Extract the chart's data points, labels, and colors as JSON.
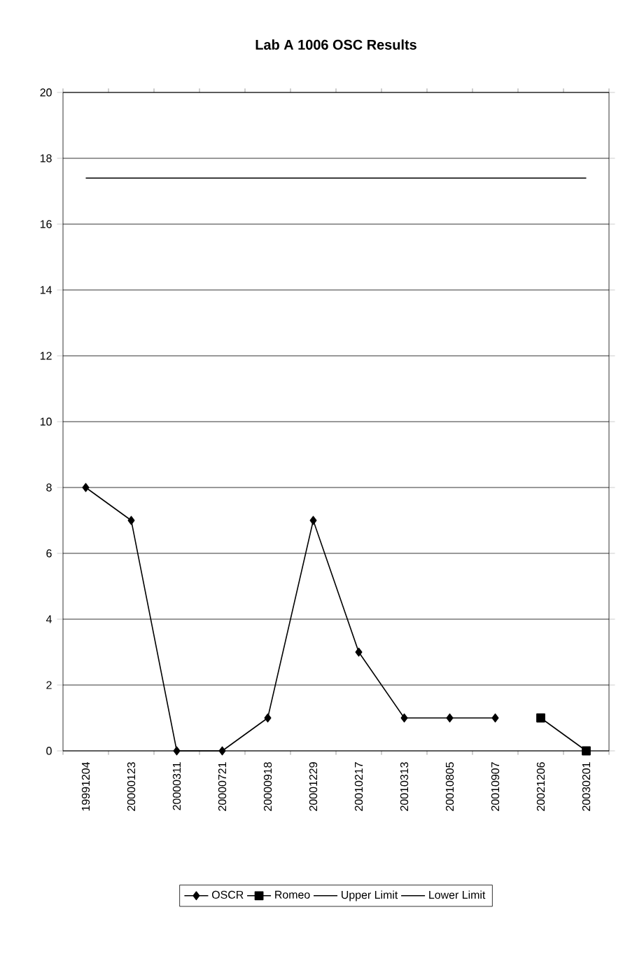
{
  "chart_data": {
    "type": "line",
    "title": "Lab A 1006 OSC Results",
    "categories": [
      "19991204",
      "20000123",
      "20000311",
      "20000721",
      "20000918",
      "20001229",
      "20010217",
      "20010313",
      "20010805",
      "20010907",
      "20021206",
      "20030201"
    ],
    "series": [
      {
        "name": "OSCR",
        "color": "#000000",
        "marker": "diamond",
        "values": [
          8,
          7,
          0,
          0,
          1,
          7,
          3,
          1,
          1,
          1,
          null,
          null
        ]
      },
      {
        "name": "Romeo",
        "color": "#000000",
        "marker": "square",
        "values": [
          null,
          null,
          null,
          null,
          null,
          null,
          null,
          null,
          null,
          null,
          1,
          0
        ]
      },
      {
        "name": "Upper Limit",
        "color": "#000000",
        "marker": "none",
        "values": [
          17.4,
          17.4,
          17.4,
          17.4,
          17.4,
          17.4,
          17.4,
          17.4,
          17.4,
          17.4,
          17.4,
          17.4
        ]
      },
      {
        "name": "Lower Limit",
        "color": "#000000",
        "marker": "none",
        "values": [
          null,
          null,
          null,
          null,
          null,
          null,
          null,
          null,
          null,
          null,
          null,
          null
        ]
      }
    ],
    "ylim": [
      0,
      20
    ],
    "yticks": [
      0,
      2,
      4,
      6,
      8,
      10,
      12,
      14,
      16,
      18,
      20
    ],
    "grid": "y",
    "legend": "bottom"
  }
}
